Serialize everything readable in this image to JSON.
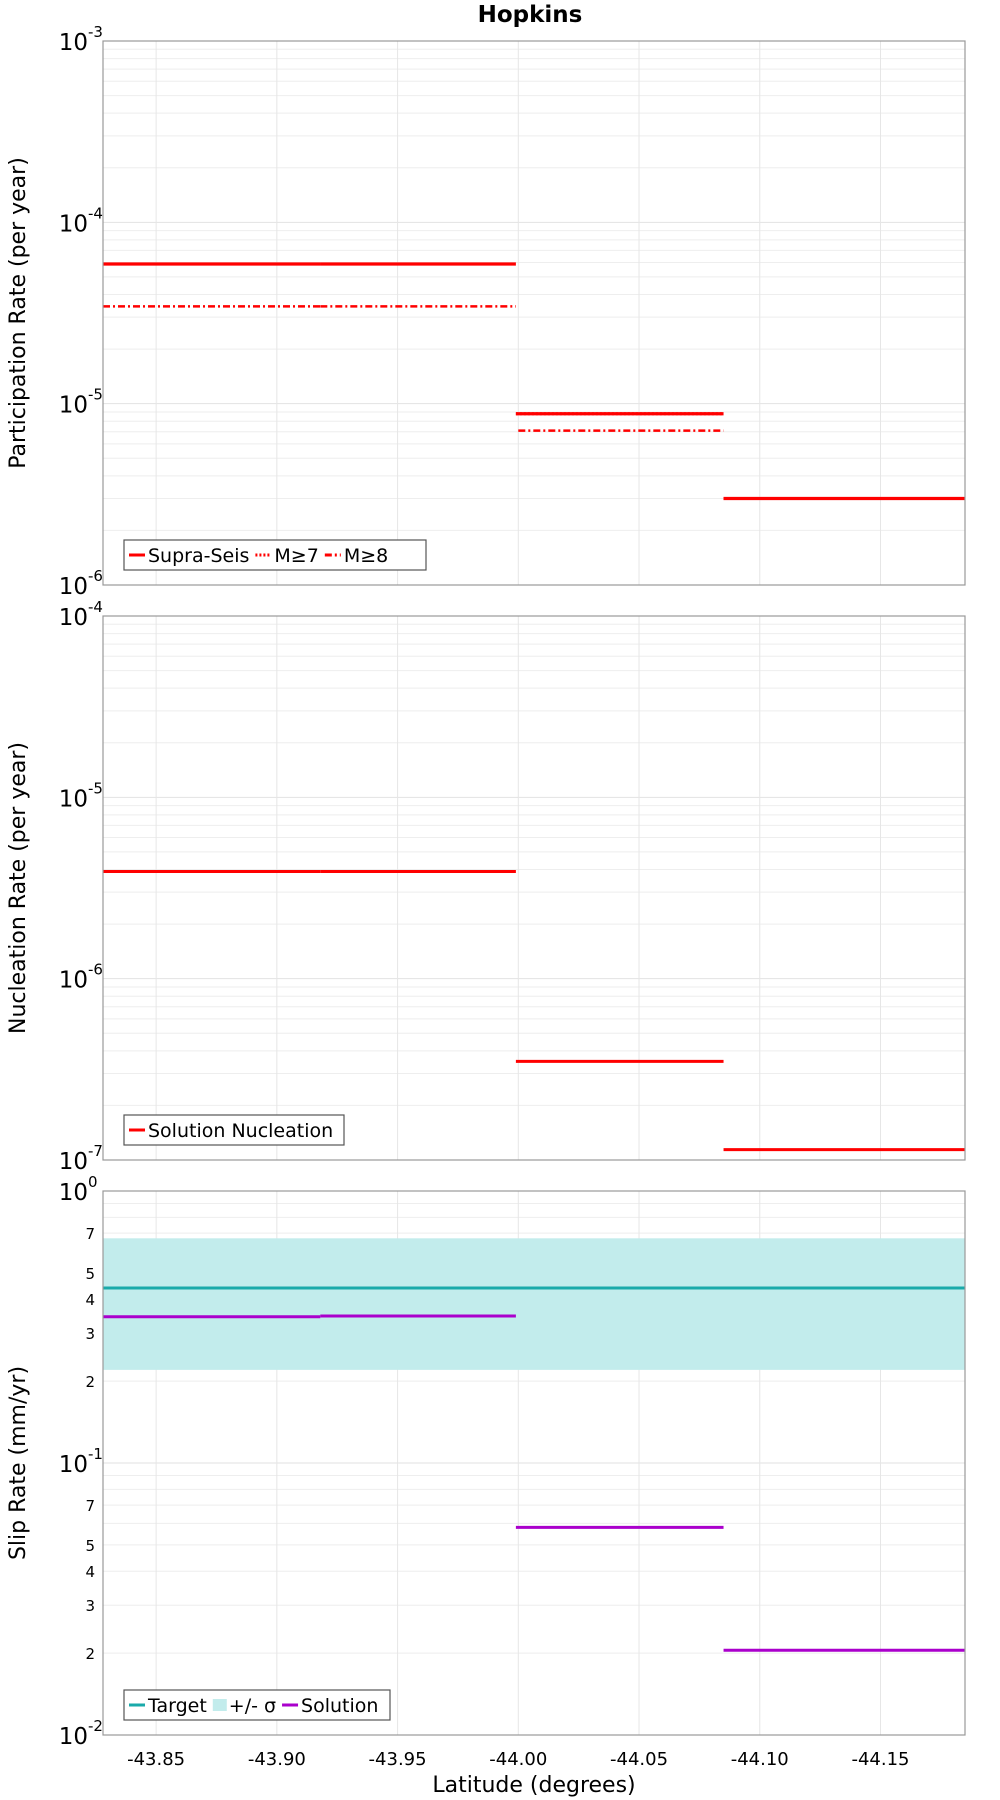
{
  "chart_data": [
    {
      "type": "line",
      "title": "Hopkins",
      "ylabel": "Participation Rate (per year)",
      "yscale": "log",
      "ylim": [
        1e-06,
        0.001
      ],
      "xlim": [
        -43.828,
        -44.185
      ],
      "x_ticks": [
        "-43.85",
        "-43.90",
        "-43.95",
        "-44.00",
        "-44.05",
        "-44.10",
        "-44.15"
      ],
      "grid": true,
      "legend_position": "bottom-left",
      "series": [
        {
          "name": "Supra-Seis",
          "style": "solid",
          "color": "#ff0000",
          "segments": [
            {
              "x": [
                -43.828,
                -43.918
              ],
              "y": 5.89e-05
            },
            {
              "x": [
                -43.918,
                -43.999
              ],
              "y": 5.89e-05
            },
            {
              "x": [
                -43.999,
                -44.085
              ],
              "y": 8.8e-06
            },
            {
              "x": [
                -44.085,
                -44.185
              ],
              "y": 3e-06
            }
          ]
        },
        {
          "name": "M≥7",
          "style": "dotted",
          "color": "#ff0000",
          "segments": [
            {
              "x": [
                -43.828,
                -43.918
              ],
              "y": 5.89e-05
            },
            {
              "x": [
                -43.918,
                -43.999
              ],
              "y": 5.89e-05
            },
            {
              "x": [
                -43.999,
                -44.085
              ],
              "y": 8.8e-06
            },
            {
              "x": [
                -44.085,
                -44.185
              ],
              "y": 3e-06
            }
          ]
        },
        {
          "name": "M≥8",
          "style": "dash-dot",
          "color": "#ff0000",
          "segments": [
            {
              "x": [
                -43.828,
                -43.918
              ],
              "y": 3.44e-05
            },
            {
              "x": [
                -43.918,
                -43.999
              ],
              "y": 3.44e-05
            },
            {
              "x": [
                -44.0,
                -44.085
              ],
              "y": 7.1e-06
            }
          ]
        }
      ]
    },
    {
      "type": "line",
      "ylabel": "Nucleation Rate (per year)",
      "yscale": "log",
      "ylim": [
        1e-07,
        0.0001
      ],
      "xlim": [
        -43.828,
        -44.185
      ],
      "grid": true,
      "legend_position": "bottom-left",
      "series": [
        {
          "name": "Solution Nucleation",
          "style": "solid",
          "color": "#ff0000",
          "segments": [
            {
              "x": [
                -43.828,
                -43.918
              ],
              "y": 3.9e-06
            },
            {
              "x": [
                -43.918,
                -43.999
              ],
              "y": 3.9e-06
            },
            {
              "x": [
                -43.999,
                -44.085
              ],
              "y": 3.5e-07
            },
            {
              "x": [
                -44.085,
                -44.185
              ],
              "y": 1.14e-07
            }
          ]
        }
      ]
    },
    {
      "type": "line",
      "ylabel": "Slip Rate (mm/yr)",
      "xlabel": "Latitude (degrees)",
      "yscale": "log",
      "ylim": [
        0.01,
        1
      ],
      "xlim": [
        -43.828,
        -44.185
      ],
      "x_ticks": [
        "-43.85",
        "-43.90",
        "-43.95",
        "-44.00",
        "-44.05",
        "-44.10",
        "-44.15"
      ],
      "grid": true,
      "legend_position": "bottom-left",
      "series": [
        {
          "name": "Target",
          "style": "solid",
          "color": "#1aaaaa",
          "segments": [
            {
              "x": [
                -43.828,
                -44.185
              ],
              "y": 0.44
            }
          ]
        },
        {
          "name": "+/- σ",
          "style": "band",
          "color": "#c2ecec",
          "band": {
            "x": [
              -43.828,
              -44.185
            ],
            "y_low": 0.22,
            "y_high": 0.67
          }
        },
        {
          "name": "Solution",
          "style": "solid",
          "color": "#aa00cc",
          "segments": [
            {
              "x": [
                -43.828,
                -43.918
              ],
              "y": 0.345
            },
            {
              "x": [
                -43.918,
                -43.999
              ],
              "y": 0.347
            },
            {
              "x": [
                -43.999,
                -44.085
              ],
              "y": 0.058
            },
            {
              "x": [
                -44.085,
                -44.185
              ],
              "y": 0.0205
            }
          ]
        }
      ]
    }
  ]
}
